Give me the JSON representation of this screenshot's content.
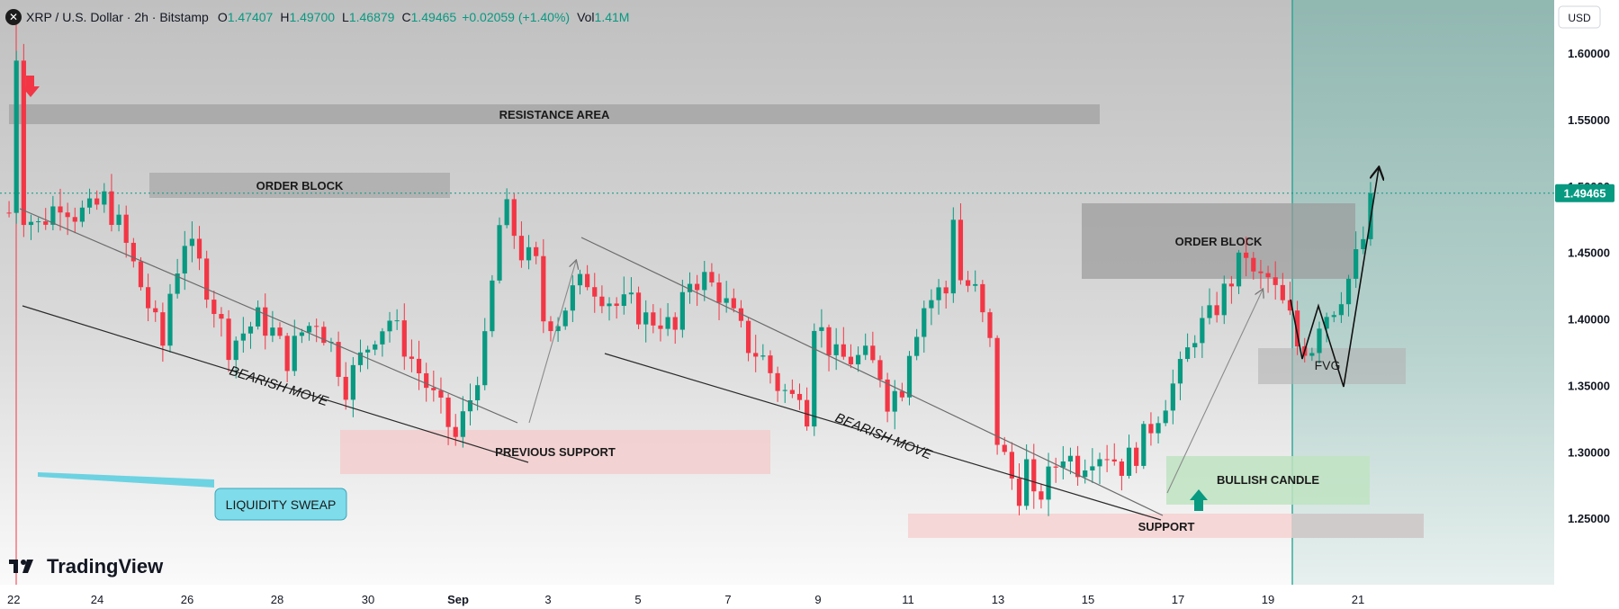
{
  "header": {
    "symbol": "XRP / U.S. Dollar · 2h · Bitstamp",
    "o_label": "O",
    "o_value": "1.47407",
    "h_label": "H",
    "h_value": "1.49700",
    "l_label": "L",
    "l_value": "1.46879",
    "c_label": "C",
    "c_value": "1.49465",
    "change": "+0.02059 (+1.40%)",
    "vol_label": "Vol",
    "vol_value": "1.41M"
  },
  "currency_button": "USD",
  "brand": "TradingView",
  "current_price": "1.49465",
  "colors": {
    "up": "#089981",
    "down": "#f23645",
    "value_color": "#089981",
    "price_tag": "#089981"
  },
  "annotations": {
    "resistance_area": "RESISTANCE AREA",
    "order_block_left": "ORDER BLOCK",
    "order_block_right": "ORDER BLOCK",
    "previous_support": "PREVIOUS SUPPORT",
    "support": "SUPPORT",
    "bullish_candle": "BULLISH CANDLE",
    "fvg": "FVG",
    "bearish_move_1": "BEARISH MOVE",
    "bearish_move_2": "BEARISH MOVE",
    "liquidity_sweap": "LIQUIDITY SWEAP"
  },
  "chart_data": {
    "type": "candlestick",
    "y_ticks": [
      "1.25000",
      "1.30000",
      "1.35000",
      "1.40000",
      "1.45000",
      "1.50000",
      "1.55000",
      "1.60000"
    ],
    "x_ticks": [
      "22",
      "24",
      "26",
      "28",
      "30",
      "Sep",
      "3",
      "5",
      "7",
      "9",
      "11",
      "13",
      "15",
      "17",
      "19",
      "21"
    ],
    "ylim": [
      1.2,
      1.64
    ],
    "path": [
      [
        0,
        1.48
      ],
      [
        1,
        1.6
      ],
      [
        2,
        1.48
      ],
      [
        4,
        1.47
      ],
      [
        7,
        1.49
      ],
      [
        9,
        1.48
      ],
      [
        11,
        1.48
      ],
      [
        13,
        1.49
      ],
      [
        15,
        1.47
      ],
      [
        17,
        1.44
      ],
      [
        19,
        1.41
      ],
      [
        21,
        1.38
      ],
      [
        22,
        1.42
      ],
      [
        24,
        1.46
      ],
      [
        26,
        1.44
      ],
      [
        28,
        1.41
      ],
      [
        30,
        1.38
      ],
      [
        32,
        1.39
      ],
      [
        34,
        1.4
      ],
      [
        36,
        1.39
      ],
      [
        38,
        1.37
      ],
      [
        40,
        1.39
      ],
      [
        42,
        1.4
      ],
      [
        44,
        1.38
      ],
      [
        46,
        1.35
      ],
      [
        48,
        1.37
      ],
      [
        50,
        1.39
      ],
      [
        52,
        1.4
      ],
      [
        54,
        1.38
      ],
      [
        56,
        1.36
      ],
      [
        58,
        1.34
      ],
      [
        60,
        1.32
      ],
      [
        61,
        1.31
      ],
      [
        63,
        1.34
      ],
      [
        65,
        1.38
      ],
      [
        67,
        1.47
      ],
      [
        68,
        1.48
      ],
      [
        70,
        1.45
      ],
      [
        72,
        1.44
      ],
      [
        73,
        1.4
      ],
      [
        75,
        1.4
      ],
      [
        77,
        1.42
      ],
      [
        79,
        1.43
      ],
      [
        81,
        1.42
      ],
      [
        83,
        1.41
      ],
      [
        85,
        1.41
      ],
      [
        87,
        1.4
      ],
      [
        89,
        1.4
      ],
      [
        91,
        1.39
      ],
      [
        93,
        1.43
      ],
      [
        95,
        1.43
      ],
      [
        97,
        1.42
      ],
      [
        99,
        1.4
      ],
      [
        101,
        1.38
      ],
      [
        103,
        1.37
      ],
      [
        105,
        1.35
      ],
      [
        107,
        1.34
      ],
      [
        108,
        1.35
      ],
      [
        109,
        1.33
      ],
      [
        110,
        1.4
      ],
      [
        111,
        1.39
      ],
      [
        113,
        1.37
      ],
      [
        115,
        1.37
      ],
      [
        117,
        1.37
      ],
      [
        119,
        1.36
      ],
      [
        120,
        1.34
      ],
      [
        122,
        1.35
      ],
      [
        123,
        1.38
      ],
      [
        125,
        1.41
      ],
      [
        127,
        1.42
      ],
      [
        128,
        1.42
      ],
      [
        129,
        1.48
      ],
      [
        130,
        1.43
      ],
      [
        132,
        1.42
      ],
      [
        133,
        1.4
      ],
      [
        134,
        1.38
      ],
      [
        135,
        1.31
      ],
      [
        137,
        1.28
      ],
      [
        138,
        1.27
      ],
      [
        139,
        1.29
      ],
      [
        140,
        1.26
      ],
      [
        142,
        1.28
      ],
      [
        144,
        1.3
      ],
      [
        146,
        1.29
      ],
      [
        148,
        1.3
      ],
      [
        150,
        1.3
      ],
      [
        152,
        1.29
      ],
      [
        154,
        1.3
      ],
      [
        156,
        1.32
      ],
      [
        158,
        1.34
      ],
      [
        160,
        1.36
      ],
      [
        162,
        1.39
      ],
      [
        164,
        1.4
      ],
      [
        166,
        1.42
      ],
      [
        168,
        1.44
      ],
      [
        169,
        1.45
      ],
      [
        170,
        1.43
      ],
      [
        172,
        1.43
      ],
      [
        174,
        1.41
      ],
      [
        175,
        1.4
      ],
      [
        176,
        1.38
      ],
      [
        178,
        1.38
      ],
      [
        179,
        1.4
      ],
      [
        181,
        1.41
      ],
      [
        183,
        1.43
      ],
      [
        185,
        1.46
      ],
      [
        186,
        1.49
      ]
    ],
    "price_line": 1.49465
  }
}
